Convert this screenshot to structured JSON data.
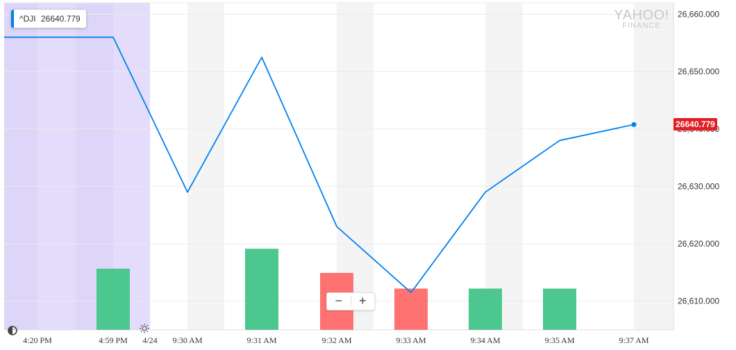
{
  "legend": {
    "symbol": "^DJI",
    "value": "26640.779",
    "color": "#0081f2"
  },
  "price_tag": {
    "label": "26640.779",
    "color": "#e01f26"
  },
  "watermark": {
    "line1": "YAHOO!",
    "line2": "FINANCE"
  },
  "zoom": {
    "minus": "−",
    "plus": "+"
  },
  "chart_data": {
    "type": "line",
    "x": [
      "4:20 PM",
      "4:59 PM",
      "9:30 AM",
      "9:31 AM",
      "9:32 AM",
      "9:33 AM",
      "9:34 AM",
      "9:35 AM",
      "9:37 AM"
    ],
    "x_date_label": "4/24",
    "series": [
      {
        "values": [
          26656,
          26656,
          26629,
          26652.5,
          26623,
          26611.5,
          26629,
          26638,
          26640.779
        ],
        "color": "#0081f2"
      }
    ],
    "volume": {
      "categories": [
        "4:59 PM",
        "9:31 AM",
        "9:32 AM",
        "9:33 AM",
        "9:34 AM",
        "9:35 AM"
      ],
      "relative_values": [
        0.43,
        0.57,
        0.4,
        0.29,
        0.29,
        0.29
      ],
      "direction": [
        "up",
        "up",
        "down",
        "down",
        "up",
        "up"
      ],
      "colors": {
        "up": "#4cc790",
        "down": "#ff7272"
      }
    },
    "yticks": [
      "26,660.000",
      "26,650.000",
      "26,640.000",
      "26,630.000",
      "26,620.000",
      "26,610.000"
    ],
    "ylim": [
      26605,
      26662
    ],
    "last_value": 26640.779,
    "after_hours_shaded": true,
    "grid": true
  }
}
